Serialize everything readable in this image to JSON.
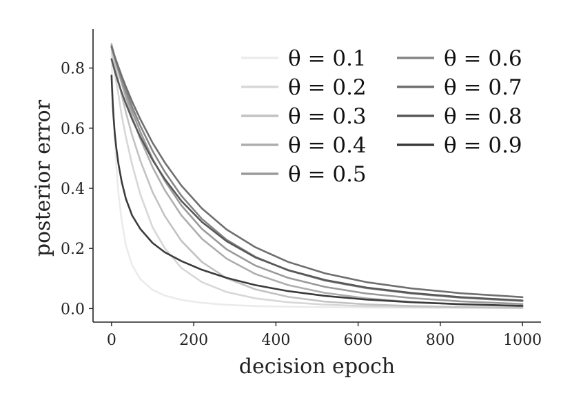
{
  "chart_data": {
    "type": "line",
    "title": "",
    "xlabel": "decision epoch",
    "ylabel": "posterior error",
    "xlim": [
      -45,
      1045
    ],
    "ylim": [
      -0.045,
      0.93
    ],
    "xticks": [
      0,
      200,
      400,
      600,
      800,
      1000
    ],
    "xtick_labels": [
      "0",
      "200",
      "400",
      "600",
      "800",
      "1000"
    ],
    "yticks": [
      0.0,
      0.2,
      0.4,
      0.6,
      0.8
    ],
    "ytick_labels": [
      "0.0",
      "0.2",
      "0.4",
      "0.6",
      "0.8"
    ],
    "grid": false,
    "legend": {
      "placement": "top-right",
      "columns": 2
    },
    "x": [
      0,
      1,
      2,
      3,
      5,
      8,
      12,
      17,
      25,
      35,
      50,
      70,
      100,
      130,
      170,
      220,
      280,
      350,
      430,
      520,
      620,
      730,
      850,
      1000
    ],
    "series": [
      {
        "name": "θ = 0.1",
        "color": "#ebebeb",
        "values": [
          0.85,
          0.8,
          0.76,
          0.72,
          0.65,
          0.56,
          0.47,
          0.38,
          0.29,
          0.21,
          0.145,
          0.098,
          0.062,
          0.043,
          0.029,
          0.019,
          0.0125,
          0.0085,
          0.0062,
          0.0045,
          0.0034,
          0.0026,
          0.002,
          0.0015
        ]
      },
      {
        "name": "θ = 0.2",
        "color": "#d7d7d7",
        "values": [
          0.86,
          0.85,
          0.84,
          0.83,
          0.81,
          0.78,
          0.75,
          0.71,
          0.64,
          0.57,
          0.48,
          0.38,
          0.27,
          0.2,
          0.135,
          0.088,
          0.055,
          0.034,
          0.021,
          0.013,
          0.008,
          0.0052,
          0.0034,
          0.002
        ]
      },
      {
        "name": "θ = 0.3",
        "color": "#c2c2c2",
        "values": [
          0.87,
          0.862,
          0.855,
          0.848,
          0.835,
          0.814,
          0.788,
          0.757,
          0.708,
          0.652,
          0.577,
          0.492,
          0.387,
          0.307,
          0.225,
          0.155,
          0.101,
          0.064,
          0.039,
          0.023,
          0.014,
          0.0085,
          0.005,
          0.0028
        ]
      },
      {
        "name": "θ = 0.4",
        "color": "#aeaeae",
        "values": [
          0.88,
          0.874,
          0.868,
          0.863,
          0.852,
          0.835,
          0.814,
          0.788,
          0.748,
          0.702,
          0.638,
          0.564,
          0.47,
          0.393,
          0.31,
          0.232,
          0.166,
          0.115,
          0.078,
          0.052,
          0.034,
          0.022,
          0.014,
          0.008
        ]
      },
      {
        "name": "θ = 0.5",
        "color": "#9a9a9a",
        "values": [
          0.875,
          0.87,
          0.865,
          0.86,
          0.85,
          0.835,
          0.815,
          0.793,
          0.757,
          0.715,
          0.657,
          0.588,
          0.498,
          0.424,
          0.343,
          0.265,
          0.197,
          0.143,
          0.102,
          0.072,
          0.05,
          0.035,
          0.024,
          0.015
        ]
      },
      {
        "name": "θ = 0.6",
        "color": "#858585",
        "values": [
          0.872,
          0.867,
          0.862,
          0.858,
          0.849,
          0.835,
          0.818,
          0.797,
          0.764,
          0.726,
          0.672,
          0.608,
          0.524,
          0.454,
          0.375,
          0.298,
          0.229,
          0.172,
          0.127,
          0.093,
          0.068,
          0.05,
          0.036,
          0.025
        ]
      },
      {
        "name": "θ = 0.7",
        "color": "#6f6f6f",
        "values": [
          0.87,
          0.866,
          0.862,
          0.858,
          0.85,
          0.838,
          0.822,
          0.803,
          0.773,
          0.738,
          0.689,
          0.63,
          0.551,
          0.485,
          0.409,
          0.333,
          0.263,
          0.204,
          0.155,
          0.117,
          0.088,
          0.067,
          0.051,
          0.038
        ]
      },
      {
        "name": "θ = 0.8",
        "color": "#585858",
        "values": [
          0.83,
          0.825,
          0.82,
          0.815,
          0.805,
          0.79,
          0.772,
          0.75,
          0.718,
          0.681,
          0.63,
          0.571,
          0.494,
          0.43,
          0.358,
          0.288,
          0.224,
          0.17,
          0.128,
          0.095,
          0.07,
          0.052,
          0.038,
          0.027
        ]
      },
      {
        "name": "θ = 0.9",
        "color": "#3b3b3b",
        "values": [
          0.775,
          0.74,
          0.71,
          0.68,
          0.635,
          0.58,
          0.53,
          0.48,
          0.42,
          0.365,
          0.31,
          0.265,
          0.218,
          0.187,
          0.158,
          0.129,
          0.102,
          0.078,
          0.058,
          0.042,
          0.03,
          0.021,
          0.0145,
          0.009
        ]
      }
    ]
  }
}
